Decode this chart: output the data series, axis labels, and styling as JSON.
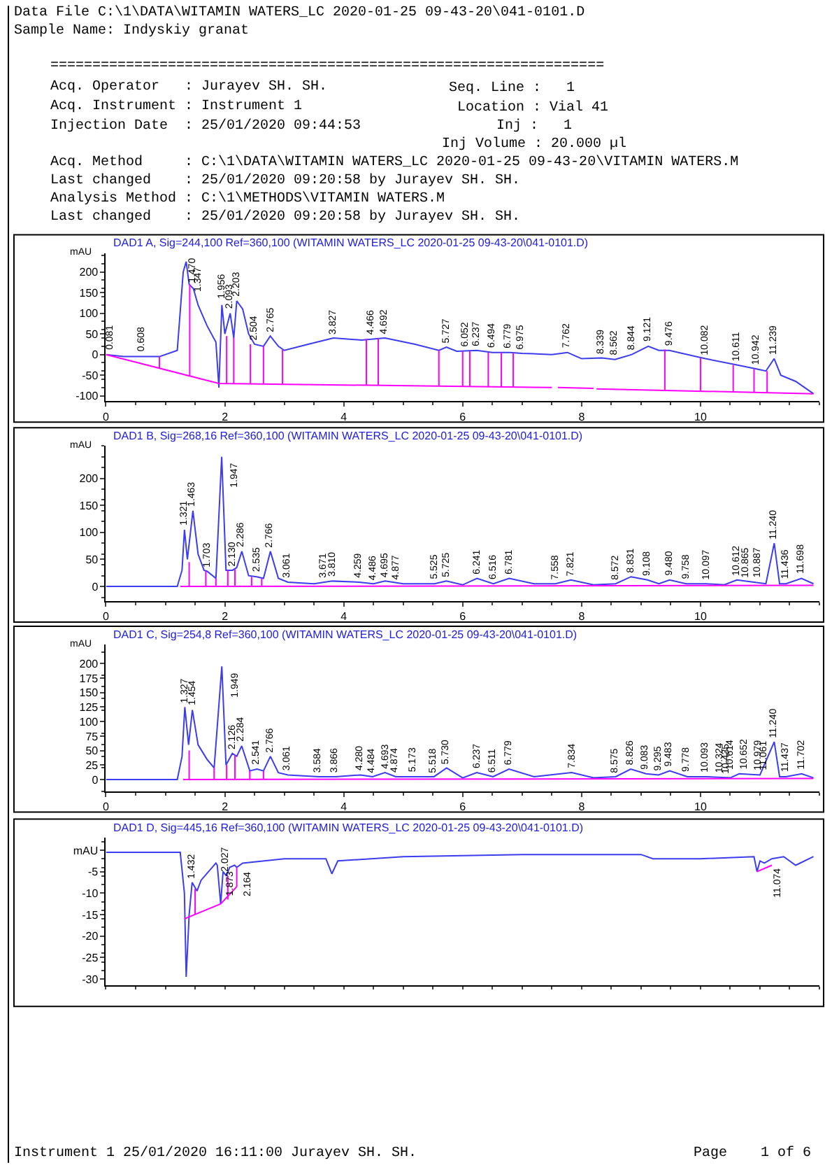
{
  "chart_data": [
    {
      "type": "line",
      "title": "DAD1 A, Sig=244,100 Ref=360,100 (WITAMIN WATERS_LC 2020-01-25 09-43-20\\041-0101.D)",
      "ylabel": "mAU",
      "xlim": [
        0,
        12
      ],
      "xticks": [
        0,
        2,
        4,
        6,
        8,
        10
      ],
      "ylim": [
        -113,
        246
      ],
      "yticks": [
        -100,
        -50,
        0,
        50,
        100,
        150,
        200
      ],
      "marker": "none",
      "line_style": "solid",
      "series": [
        {
          "color": "#3c3cf0",
          "x": [
            0,
            0.3,
            0.9,
            1.2,
            1.3,
            1.35,
            1.4,
            1.47,
            1.55,
            1.7,
            1.85,
            1.9,
            1.95,
            2.0,
            2.09,
            2.15,
            2.2,
            2.3,
            2.4,
            2.5,
            2.65,
            2.765,
            2.9,
            3.0,
            3.4,
            3.827,
            4.3,
            4.692,
            5.2,
            5.6,
            5.727,
            5.9,
            6.237,
            6.5,
            6.8,
            7.0,
            7.5,
            7.762,
            8.0,
            8.339,
            8.562,
            8.844,
            9.121,
            9.3,
            9.476,
            10.082,
            10.611,
            10.942,
            11.1,
            11.239,
            11.35,
            11.6,
            11.9
          ],
          "values": [
            0,
            -5,
            -5,
            10,
            200,
            225,
            170,
            160,
            120,
            70,
            30,
            -80,
            120,
            50,
            100,
            40,
            130,
            110,
            50,
            25,
            20,
            45,
            20,
            10,
            25,
            40,
            35,
            40,
            25,
            10,
            18,
            8,
            10,
            5,
            5,
            3,
            0,
            5,
            -10,
            -8,
            -12,
            0,
            20,
            10,
            10,
            -10,
            -25,
            -35,
            -40,
            -10,
            -50,
            -65,
            -95
          ]
        },
        {
          "color": "#ff00ff",
          "x": [
            0,
            1.9,
            7.5,
            null,
            7.6,
            8.2,
            null,
            8.25,
            11.9,
            null,
            0.9,
            0.9,
            null,
            1.41,
            1.41,
            null,
            2.03,
            2.03,
            null,
            2.15,
            2.15,
            null,
            2.43,
            2.43,
            null,
            2.65,
            2.65,
            null,
            2.97,
            2.97,
            null,
            4.38,
            4.38,
            null,
            4.58,
            4.58,
            null,
            5.6,
            5.6,
            null,
            6.0,
            6.0,
            null,
            6.12,
            6.12,
            null,
            6.43,
            6.43,
            null,
            6.65,
            6.65,
            null,
            6.85,
            6.85,
            null,
            9.4,
            9.4,
            null,
            10.0,
            10.0,
            null,
            10.55,
            10.55,
            null,
            10.9,
            10.9,
            null,
            11.12,
            11.12
          ],
          "values": [
            0,
            -70,
            -80,
            null,
            -80,
            -82,
            null,
            -83,
            -95,
            null,
            -33,
            -5,
            null,
            -52,
            170,
            null,
            -70,
            45,
            null,
            -70,
            40,
            null,
            -71,
            25,
            null,
            -71,
            20,
            null,
            -72,
            12,
            null,
            -74,
            38,
            null,
            -75,
            38,
            null,
            -77,
            10,
            null,
            -78,
            8,
            null,
            -78,
            8,
            null,
            -79,
            5,
            null,
            -79,
            5,
            null,
            -79,
            4,
            null,
            -87,
            12,
            null,
            -88,
            -8,
            null,
            -90,
            -25,
            null,
            -92,
            -35,
            null,
            -93,
            -40
          ]
        }
      ],
      "annotations": [
        "Data File C:\\1\\DATA\\WITAMIN WATERS_LC 2020-01-25 09-43-20\\041-0101.D",
        "Sample Name: Indyskiy granat",
        "==================================================================",
        "Acq. Operator   : Jurayev SH. SH.",
        "Seq. Line :   1",
        "Acq. Instrument : Instrument 1",
        "Location : Vial 41",
        "Injection Date  : 25/01/2020 09:44:53",
        "Inj :   1",
        "Inj Volume : 20.000 µl",
        "Acq. Method     : C:\\1\\DATA\\WITAMIN WATERS_LC 2020-01-25 09-43-20\\VITAMIN WATERS.M",
        "Last changed    : 25/01/2020 09:20:58 by Jurayev SH. SH.",
        "Analysis Method : C:\\1\\METHODS\\VITAMIN WATERS.M",
        "Last changed    : 25/01/2020 09:20:58 by Jurayev SH. SH.",
        {
          "text": "0.081",
          "x": 0.081,
          "y": 2
        },
        {
          "text": "0.608",
          "x": 0.608,
          "y": -4
        },
        {
          "text": "1.347",
          "x": 1.347,
          "y": 225
        },
        {
          "text": "1.470",
          "x": 1.47,
          "y": 165
        },
        {
          "text": "1.956",
          "x": 1.956,
          "y": 125
        },
        {
          "text": "2.093",
          "x": 2.093,
          "y": 100
        },
        {
          "text": "2.203",
          "x": 2.203,
          "y": 132
        },
        {
          "text": "2.504",
          "x": 2.504,
          "y": 25
        },
        {
          "text": "2.765",
          "x": 2.765,
          "y": 45
        },
        {
          "text": "3.827",
          "x": 3.827,
          "y": 40
        },
        {
          "text": "4.466",
          "x": 4.466,
          "y": 37
        },
        {
          "text": "4.692",
          "x": 4.692,
          "y": 40
        },
        {
          "text": "5.727",
          "x": 5.727,
          "y": 18
        },
        {
          "text": "6.052",
          "x": 6.052,
          "y": 9
        },
        {
          "text": "6.237",
          "x": 6.237,
          "y": 10
        },
        {
          "text": "6.494",
          "x": 6.494,
          "y": 6
        },
        {
          "text": "6.779",
          "x": 6.779,
          "y": 5
        },
        {
          "text": "6.975",
          "x": 6.975,
          "y": 3
        },
        {
          "text": "7.762",
          "x": 7.762,
          "y": 5
        },
        {
          "text": "8.339",
          "x": 8.339,
          "y": -8
        },
        {
          "text": "8.562",
          "x": 8.562,
          "y": -12
        },
        {
          "text": "8.844",
          "x": 8.844,
          "y": 0
        },
        {
          "text": "9.121",
          "x": 9.121,
          "y": 20
        },
        {
          "text": "9.476",
          "x": 9.476,
          "y": 10
        },
        {
          "text": "10.082",
          "x": 10.082,
          "y": -10
        },
        {
          "text": "10.611",
          "x": 10.611,
          "y": -25
        },
        {
          "text": "10.942",
          "x": 10.942,
          "y": -35
        },
        {
          "text": "11.239",
          "x": 11.239,
          "y": -10
        }
      ]
    },
    {
      "type": "line",
      "title": "DAD1 B, Sig=268,16 Ref=360,100 (WITAMIN WATERS_LC 2020-01-25 09-43-20\\041-0101.D)",
      "ylabel": "mAU",
      "xlim": [
        0,
        12
      ],
      "xticks": [
        0,
        2,
        4,
        6,
        8,
        10
      ],
      "ylim": [
        -27,
        260
      ],
      "yticks": [
        0,
        50,
        100,
        150,
        200
      ],
      "marker": "none",
      "line_style": "solid",
      "series": [
        {
          "color": "#3c3cf0",
          "x": [
            0,
            1.2,
            1.28,
            1.321,
            1.37,
            1.463,
            1.55,
            1.65,
            1.703,
            1.85,
            1.947,
            2.02,
            2.13,
            2.2,
            2.286,
            2.4,
            2.535,
            2.65,
            2.766,
            2.9,
            3.061,
            3.5,
            3.671,
            3.81,
            4.259,
            4.5,
            4.695,
            5.0,
            5.525,
            5.725,
            6.0,
            6.241,
            6.516,
            6.781,
            7.2,
            7.558,
            7.821,
            8.2,
            8.572,
            8.831,
            9.108,
            9.3,
            9.48,
            9.758,
            10.097,
            10.4,
            10.612,
            10.9,
            11.1,
            11.24,
            11.33,
            11.436,
            11.698,
            11.9
          ],
          "values": [
            0,
            0,
            30,
            105,
            50,
            140,
            60,
            30,
            28,
            15,
            240,
            30,
            30,
            35,
            65,
            20,
            18,
            15,
            65,
            15,
            8,
            5,
            8,
            10,
            8,
            5,
            10,
            5,
            5,
            10,
            3,
            15,
            5,
            15,
            5,
            5,
            12,
            3,
            5,
            18,
            12,
            5,
            12,
            5,
            5,
            3,
            12,
            8,
            5,
            80,
            5,
            5,
            15,
            5
          ]
        },
        {
          "color": "#ff00ff",
          "x": [
            1.25,
            11.9,
            null,
            1.4,
            1.4,
            null,
            1.68,
            1.68,
            null,
            1.85,
            1.85,
            null,
            2.05,
            2.05,
            null,
            2.17,
            2.17,
            null,
            2.45,
            2.45,
            null,
            2.62,
            2.62
          ],
          "values": [
            0,
            2,
            null,
            0,
            45,
            null,
            0,
            28,
            null,
            0,
            15,
            null,
            0,
            30,
            null,
            0,
            32,
            null,
            0,
            18,
            null,
            0,
            15
          ]
        }
      ],
      "annotations": [
        {
          "text": "1.321",
          "x": 1.321,
          "y": 105
        },
        {
          "text": "1.463",
          "x": 1.463,
          "y": 140
        },
        {
          "text": "1.703",
          "x": 1.703,
          "y": 28
        },
        {
          "text": "1.947",
          "x": 1.947,
          "y": 240
        },
        {
          "text": "2.130",
          "x": 2.13,
          "y": 30
        },
        {
          "text": "2.286",
          "x": 2.286,
          "y": 65
        },
        {
          "text": "2.535",
          "x": 2.535,
          "y": 18
        },
        {
          "text": "2.766",
          "x": 2.766,
          "y": 65
        },
        {
          "text": "3.061",
          "x": 3.061,
          "y": 8
        },
        {
          "text": "3.671",
          "x": 3.671,
          "y": 8
        },
        {
          "text": "3.810",
          "x": 3.81,
          "y": 10
        },
        {
          "text": "4.259",
          "x": 4.259,
          "y": 8
        },
        {
          "text": "4.486",
          "x": 4.486,
          "y": 5
        },
        {
          "text": "4.695",
          "x": 4.695,
          "y": 10
        },
        {
          "text": "4.877",
          "x": 4.877,
          "y": 5
        },
        {
          "text": "5.525",
          "x": 5.525,
          "y": 5
        },
        {
          "text": "5.725",
          "x": 5.725,
          "y": 10
        },
        {
          "text": "6.241",
          "x": 6.241,
          "y": 15
        },
        {
          "text": "6.516",
          "x": 6.516,
          "y": 5
        },
        {
          "text": "6.781",
          "x": 6.781,
          "y": 15
        },
        {
          "text": "7.558",
          "x": 7.558,
          "y": 5
        },
        {
          "text": "7.821",
          "x": 7.821,
          "y": 12
        },
        {
          "text": "8.572",
          "x": 8.572,
          "y": 5
        },
        {
          "text": "8.831",
          "x": 8.831,
          "y": 18
        },
        {
          "text": "9.108",
          "x": 9.108,
          "y": 12
        },
        {
          "text": "9.480",
          "x": 9.48,
          "y": 12
        },
        {
          "text": "9.758",
          "x": 9.758,
          "y": 5
        },
        {
          "text": "10.097",
          "x": 10.097,
          "y": 5
        },
        {
          "text": "10.612",
          "x": 10.612,
          "y": 12
        },
        {
          "text": "10.865",
          "x": 10.865,
          "y": 8
        },
        {
          "text": "10.887",
          "x": 10.887,
          "y": 8
        },
        {
          "text": "11.240",
          "x": 11.24,
          "y": 80
        },
        {
          "text": "11.436",
          "x": 11.436,
          "y": 5
        },
        {
          "text": "11.698",
          "x": 11.698,
          "y": 15
        }
      ]
    },
    {
      "type": "line",
      "title": "DAD1 C, Sig=254,8 Ref=360,100 (WITAMIN WATERS_LC 2020-01-25 09-43-20\\041-0101.D)",
      "ylabel": "mAU",
      "xlim": [
        0,
        12
      ],
      "xticks": [
        0,
        2,
        4,
        6,
        8,
        10
      ],
      "ylim": [
        -20,
        233
      ],
      "yticks": [
        0,
        25,
        50,
        75,
        100,
        125,
        150,
        175,
        200
      ],
      "marker": "none",
      "line_style": "solid",
      "series": [
        {
          "color": "#3c3cf0",
          "x": [
            0,
            1.2,
            1.28,
            1.327,
            1.39,
            1.454,
            1.55,
            1.7,
            1.82,
            1.949,
            2.02,
            2.126,
            2.2,
            2.284,
            2.42,
            2.541,
            2.65,
            2.766,
            2.9,
            3.061,
            3.584,
            3.866,
            4.28,
            4.484,
            4.693,
            4.874,
            5.173,
            5.518,
            5.73,
            6.0,
            6.237,
            6.511,
            6.779,
            7.2,
            7.834,
            8.2,
            8.575,
            8.826,
            9.083,
            9.295,
            9.483,
            9.778,
            10.093,
            10.5,
            10.65,
            11.0,
            11.24,
            11.33,
            11.437,
            11.702,
            11.9
          ],
          "values": [
            0,
            0,
            40,
            125,
            60,
            120,
            60,
            35,
            20,
            195,
            25,
            45,
            40,
            58,
            15,
            18,
            15,
            40,
            12,
            8,
            5,
            5,
            8,
            5,
            12,
            5,
            5,
            5,
            20,
            3,
            12,
            5,
            18,
            5,
            12,
            3,
            5,
            18,
            10,
            8,
            15,
            5,
            5,
            3,
            10,
            8,
            65,
            5,
            5,
            10,
            3
          ]
        },
        {
          "color": "#ff00ff",
          "x": [
            1.3,
            11.9,
            null,
            1.4,
            1.4,
            null,
            1.82,
            1.82,
            null,
            2.03,
            2.03,
            null,
            2.17,
            2.17,
            null,
            2.42,
            2.42,
            null,
            2.65,
            2.65
          ],
          "values": [
            0,
            2,
            null,
            0,
            50,
            null,
            0,
            20,
            null,
            0,
            25,
            null,
            0,
            42,
            null,
            0,
            15,
            null,
            0,
            15
          ]
        }
      ],
      "annotations": [
        {
          "text": "1.327",
          "x": 1.327,
          "y": 125
        },
        {
          "text": "1.454",
          "x": 1.454,
          "y": 120
        },
        {
          "text": "1.949",
          "x": 1.949,
          "y": 195
        },
        {
          "text": "2.126",
          "x": 2.126,
          "y": 45
        },
        {
          "text": "2.284",
          "x": 2.284,
          "y": 58
        },
        {
          "text": "2.541",
          "x": 2.541,
          "y": 18
        },
        {
          "text": "2.766",
          "x": 2.766,
          "y": 40
        },
        {
          "text": "3.061",
          "x": 3.061,
          "y": 8
        },
        {
          "text": "3.584",
          "x": 3.584,
          "y": 5
        },
        {
          "text": "3.866",
          "x": 3.866,
          "y": 5
        },
        {
          "text": "4.280",
          "x": 4.28,
          "y": 8
        },
        {
          "text": "4.484",
          "x": 4.484,
          "y": 5
        },
        {
          "text": "4.693",
          "x": 4.693,
          "y": 12
        },
        {
          "text": "4.874",
          "x": 4.874,
          "y": 5
        },
        {
          "text": "5.173",
          "x": 5.173,
          "y": 5
        },
        {
          "text": "5.518",
          "x": 5.518,
          "y": 5
        },
        {
          "text": "5.730",
          "x": 5.73,
          "y": 20
        },
        {
          "text": "6.237",
          "x": 6.237,
          "y": 12
        },
        {
          "text": "6.511",
          "x": 6.511,
          "y": 5
        },
        {
          "text": "6.779",
          "x": 6.779,
          "y": 18
        },
        {
          "text": "7.834",
          "x": 7.834,
          "y": 12
        },
        {
          "text": "8.575",
          "x": 8.575,
          "y": 5
        },
        {
          "text": "8.826",
          "x": 8.826,
          "y": 18
        },
        {
          "text": "9.083",
          "x": 9.083,
          "y": 10
        },
        {
          "text": "9.295",
          "x": 9.295,
          "y": 8
        },
        {
          "text": "9.483",
          "x": 9.483,
          "y": 15
        },
        {
          "text": "9.778",
          "x": 9.778,
          "y": 5
        },
        {
          "text": "10.093",
          "x": 10.093,
          "y": 5
        },
        {
          "text": "10.324",
          "x": 10.324,
          "y": 4
        },
        {
          "text": "10.435",
          "x": 10.435,
          "y": 4
        },
        {
          "text": "10.614",
          "x": 10.614,
          "y": 10
        },
        {
          "text": "10.652",
          "x": 10.652,
          "y": 10
        },
        {
          "text": "10.979",
          "x": 10.979,
          "y": 8
        },
        {
          "text": "11.061",
          "x": 11.061,
          "y": 8
        },
        {
          "text": "11.240",
          "x": 11.24,
          "y": 65
        },
        {
          "text": "11.437",
          "x": 11.437,
          "y": 5
        },
        {
          "text": "11.702",
          "x": 11.702,
          "y": 10
        }
      ]
    },
    {
      "type": "line",
      "title": "DAD1 D, Sig=445,16 Ref=360,100 (WITAMIN WATERS_LC 2020-01-25 09-43-20\\041-0101.D)",
      "xlim": [
        0,
        12
      ],
      "ylim": [
        -31.5,
        3
      ],
      "yticks": [
        {
          "value": 0,
          "label": "mAU"
        },
        -5,
        -10,
        -15,
        -20,
        -25,
        -30
      ],
      "tick_labels": "y",
      "marker": "none",
      "line_style": "solid",
      "series": [
        {
          "color": "#3c3cf0",
          "x": [
            0,
            1.25,
            1.32,
            1.35,
            1.4,
            1.45,
            1.532,
            1.6,
            1.85,
            1.873,
            1.93,
            1.97,
            2.027,
            2.08,
            2.164,
            2.2,
            2.3,
            3.0,
            3.7,
            3.8,
            3.9,
            5,
            7,
            9,
            9.2,
            10,
            10.9,
            10.95,
            11.0,
            11.074,
            11.2,
            11.4,
            11.6,
            11.9
          ],
          "values": [
            -0.5,
            -0.5,
            -10,
            -29.5,
            -15,
            -7.5,
            -9.5,
            -7,
            -3,
            -3.5,
            -12.5,
            -5,
            -6,
            -4,
            -3.5,
            -4,
            -3,
            -2,
            -2,
            -5.5,
            -2.5,
            -1.5,
            -1,
            -1,
            -2,
            -2,
            -1.5,
            -5,
            -2.5,
            -3,
            -2,
            -1.5,
            -3.5,
            -1.5
          ]
        },
        {
          "color": "#ff00ff",
          "x": [
            1.32,
            1.93,
            2.2,
            null,
            1.5,
            1.5,
            null,
            2.05,
            2.05,
            null,
            2.2,
            2.2,
            null,
            10.95,
            11.2
          ],
          "values": [
            -16,
            -12.5,
            -8.5,
            null,
            -15,
            -9,
            null,
            -11.5,
            -6,
            null,
            -8.5,
            -4,
            null,
            -5,
            -3.5
          ]
        }
      ],
      "annotations": [
        {
          "text": "1.432",
          "x": 1.45,
          "y": -7.5
        },
        {
          "text": "1.873",
          "x": 1.873,
          "y": -3.5
        },
        {
          "text": "2.027",
          "x": 2.027,
          "y": -6
        },
        {
          "text": "2.164",
          "x": 2.164,
          "y": -3.5
        },
        {
          "text": "11.074",
          "x": 11.074,
          "y": -3
        },
        "Instrument 1 25/01/2020 16:11:00 Jurayev SH. SH.",
        "Page    1 of 6"
      ]
    }
  ]
}
